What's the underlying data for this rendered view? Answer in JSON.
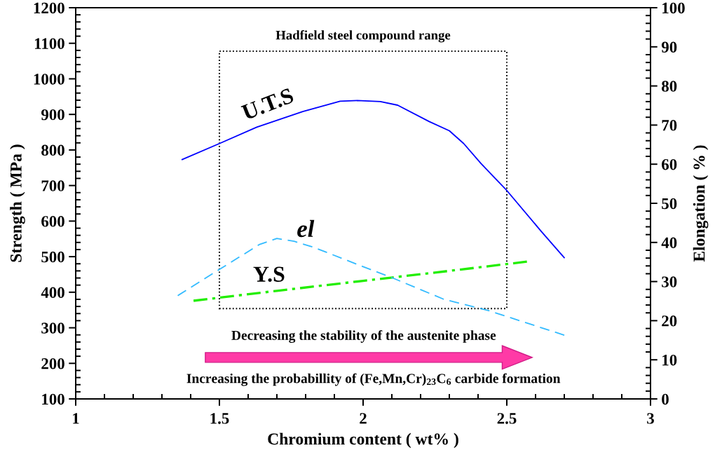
{
  "chart_data": {
    "type": "line",
    "xlabel": "Chromium content ( wt% )",
    "ylabel": "Strength ( MPa )",
    "y2label": "Elongation ( % )",
    "xlim": [
      1,
      3
    ],
    "xticks": [
      1,
      1.5,
      2,
      2.5,
      3
    ],
    "ylim": [
      100,
      1200
    ],
    "yticks": [
      100,
      200,
      300,
      400,
      500,
      600,
      700,
      800,
      900,
      1000,
      1100,
      1200
    ],
    "y2lim": [
      0,
      100
    ],
    "y2ticks": [
      0,
      10,
      20,
      30,
      40,
      50,
      60,
      70,
      80,
      90,
      100
    ],
    "series": [
      {
        "name": "U.T.S",
        "color": "#0000ff",
        "line_style": "solid",
        "x": [
          1.37,
          1.5,
          1.63,
          1.79,
          1.92,
          1.98,
          2.06,
          2.12,
          2.23,
          2.3,
          2.35,
          2.41,
          2.5,
          2.62,
          2.7
        ],
        "values": [
          773,
          818,
          864,
          908,
          937,
          939,
          936,
          926,
          880,
          854,
          818,
          762,
          686,
          571,
          497
        ]
      },
      {
        "name": "Y.S",
        "color": "#22ee00",
        "line_style": "dashdot",
        "x": [
          1.41,
          1.7,
          2.0,
          2.3,
          2.57
        ],
        "values": [
          376,
          404,
          432,
          460,
          486
        ]
      },
      {
        "name": "el",
        "color": "#33bbff",
        "line_style": "dashed",
        "axis": "y2",
        "x": [
          1.355,
          1.5,
          1.64,
          1.7,
          1.76,
          1.83,
          2.0,
          2.1,
          2.28,
          2.44,
          2.7
        ],
        "values": [
          26.4,
          33.1,
          39.5,
          41,
          40.3,
          38.7,
          33.8,
          31,
          25.5,
          22.5,
          16.3
        ]
      }
    ],
    "annotations": [
      "Hadfield steel compound range",
      "Decreasing the stability of the austenite phase",
      "Increasing the probabillity of (Fe,Mn,Cr)$_{23}$C$_{6}$ carbide formation"
    ]
  }
}
